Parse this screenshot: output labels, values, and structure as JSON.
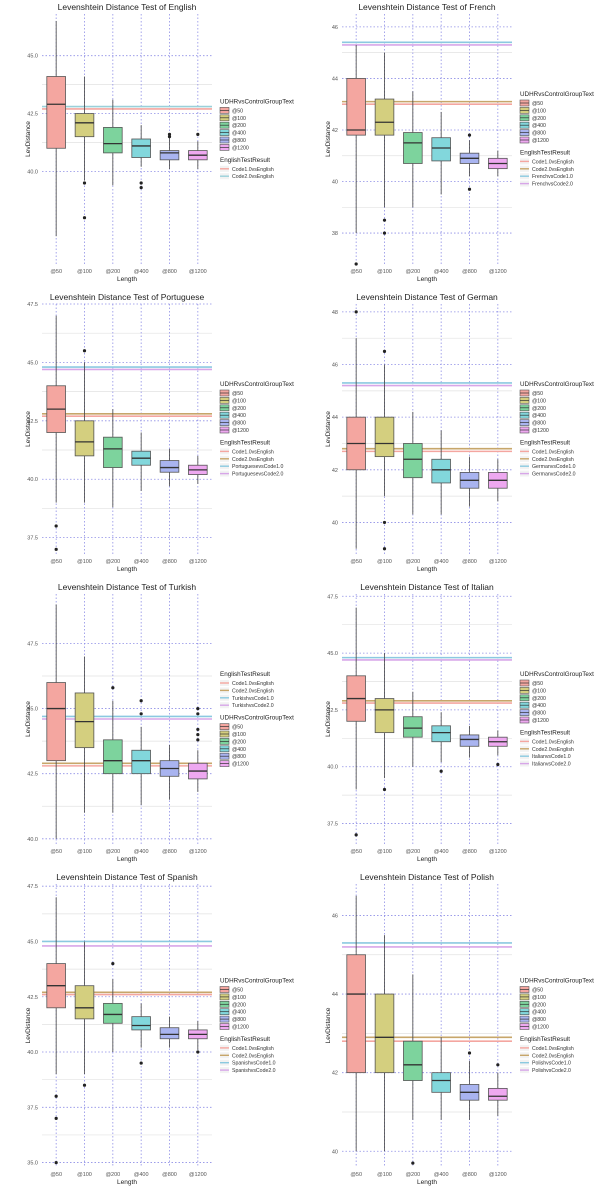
{
  "charts": [
    {
      "type": "boxplot",
      "title": "Levenshtein Distance Test of English",
      "xlabel": "Length",
      "ylabel": "LevDistance",
      "categories": [
        "@50",
        "@100",
        "@200",
        "@400",
        "@800",
        "@1200"
      ],
      "ylim": [
        36.0,
        46.8
      ],
      "yticks": [
        40.0,
        42.5,
        45.0
      ],
      "boxes": [
        {
          "q1": 41.0,
          "median": 42.9,
          "q3": 44.1,
          "lo": 37.2,
          "hi": 46.5,
          "out": []
        },
        {
          "q1": 41.5,
          "median": 42.1,
          "q3": 42.5,
          "lo": 39.6,
          "hi": 44.1,
          "out": [
            39.5,
            38.0
          ]
        },
        {
          "q1": 40.8,
          "median": 41.2,
          "q3": 41.9,
          "lo": 39.4,
          "hi": 43.1,
          "out": []
        },
        {
          "q1": 40.6,
          "median": 41.1,
          "q3": 41.4,
          "lo": 40.2,
          "hi": 42.0,
          "out": [
            39.5,
            39.3
          ]
        },
        {
          "q1": 40.5,
          "median": 40.8,
          "q3": 40.9,
          "lo": 40.1,
          "hi": 41.5,
          "out": [
            41.6,
            41.5
          ]
        },
        {
          "q1": 40.5,
          "median": 40.7,
          "q3": 40.9,
          "lo": 40.1,
          "hi": 41.3,
          "out": [
            41.6
          ]
        }
      ],
      "hlines": [
        {
          "name": "Code1.0vsEnglish",
          "value": 42.7,
          "color": "#f4a6a0"
        },
        {
          "name": "Code2.0vsEnglish",
          "value": 42.8,
          "color": "#9ad0d9"
        }
      ],
      "legend_group1_title": "UDHRvsControlGroupText",
      "legend_group2_title": "EnglishTestResult",
      "group_order": "boxes_first"
    },
    {
      "type": "boxplot",
      "title": "Levenshtein Distance Test of French",
      "xlabel": "Length",
      "ylabel": "LevDistance",
      "categories": [
        "@50",
        "@100",
        "@200",
        "@400",
        "@800",
        "@1200"
      ],
      "ylim": [
        36.8,
        46.5
      ],
      "yticks": [
        38,
        40,
        42,
        44,
        46
      ],
      "boxes": [
        {
          "q1": 41.8,
          "median": 42.0,
          "q3": 44.0,
          "lo": 38.0,
          "hi": 45.3,
          "out": [
            36.8
          ]
        },
        {
          "q1": 41.8,
          "median": 42.3,
          "q3": 43.2,
          "lo": 39.0,
          "hi": 45.0,
          "out": [
            38.5,
            38.0
          ]
        },
        {
          "q1": 40.7,
          "median": 41.5,
          "q3": 41.9,
          "lo": 39.0,
          "hi": 43.5,
          "out": []
        },
        {
          "q1": 40.8,
          "median": 41.3,
          "q3": 41.7,
          "lo": 39.5,
          "hi": 42.7,
          "out": []
        },
        {
          "q1": 40.7,
          "median": 40.9,
          "q3": 41.1,
          "lo": 40.2,
          "hi": 41.6,
          "out": [
            41.8,
            39.7
          ]
        },
        {
          "q1": 40.5,
          "median": 40.7,
          "q3": 40.9,
          "lo": 40.2,
          "hi": 41.2,
          "out": []
        }
      ],
      "hlines": [
        {
          "name": "Code1.0vsEnglish",
          "value": 43.0,
          "color": "#f4a6a0"
        },
        {
          "name": "Code2.0vsEnglish",
          "value": 43.1,
          "color": "#c7a66a"
        },
        {
          "name": "FrenchvsCode1.0",
          "value": 45.4,
          "color": "#8bc9e0"
        },
        {
          "name": "FrenchvsCode2.0",
          "value": 45.3,
          "color": "#d7a6e8"
        }
      ],
      "legend_group1_title": "UDHRvsControlGroupText",
      "legend_group2_title": "EnglishTestResult",
      "group_order": "boxes_first"
    },
    {
      "type": "boxplot",
      "title": "Levenshtein Distance Test of Portuguese",
      "xlabel": "Length",
      "ylabel": "LevDistance",
      "categories": [
        "@50",
        "@100",
        "@200",
        "@400",
        "@800",
        "@1200"
      ],
      "ylim": [
        36.8,
        47.5
      ],
      "yticks": [
        37.5,
        40.0,
        42.5,
        45.0,
        47.5
      ],
      "boxes": [
        {
          "q1": 42.0,
          "median": 43.0,
          "q3": 44.0,
          "lo": 39.0,
          "hi": 47.0,
          "out": [
            38.0,
            37.0
          ]
        },
        {
          "q1": 41.0,
          "median": 41.6,
          "q3": 42.5,
          "lo": 39.0,
          "hi": 45.0,
          "out": [
            45.5
          ]
        },
        {
          "q1": 40.5,
          "median": 41.3,
          "q3": 41.8,
          "lo": 38.8,
          "hi": 43.0,
          "out": []
        },
        {
          "q1": 40.6,
          "median": 40.9,
          "q3": 41.2,
          "lo": 39.5,
          "hi": 42.0,
          "out": []
        },
        {
          "q1": 40.3,
          "median": 40.5,
          "q3": 40.8,
          "lo": 39.7,
          "hi": 41.3,
          "out": []
        },
        {
          "q1": 40.2,
          "median": 40.4,
          "q3": 40.6,
          "lo": 39.8,
          "hi": 41.0,
          "out": []
        }
      ],
      "hlines": [
        {
          "name": "Code1.0vsEnglish",
          "value": 42.7,
          "color": "#f4a6a0"
        },
        {
          "name": "Code2.0vsEnglish",
          "value": 42.8,
          "color": "#c7a66a"
        },
        {
          "name": "PortuguesevsCode1.0",
          "value": 44.8,
          "color": "#8bc9e0"
        },
        {
          "name": "PortuguesevsCode2.0",
          "value": 44.7,
          "color": "#d7a6e8"
        }
      ],
      "legend_group1_title": "UDHRvsControlGroupText",
      "legend_group2_title": "EnglishTestResult",
      "group_order": "boxes_first"
    },
    {
      "type": "boxplot",
      "title": "Levenshtein Distance Test of German",
      "xlabel": "Length",
      "ylabel": "LevDistance",
      "categories": [
        "@50",
        "@100",
        "@200",
        "@400",
        "@800",
        "@1200"
      ],
      "ylim": [
        38.8,
        48.3
      ],
      "yticks": [
        40,
        42,
        44,
        46,
        48
      ],
      "boxes": [
        {
          "q1": 42.0,
          "median": 43.0,
          "q3": 44.0,
          "lo": 39.0,
          "hi": 47.0,
          "out": [
            48.0
          ]
        },
        {
          "q1": 42.5,
          "median": 43.0,
          "q3": 44.0,
          "lo": 41.0,
          "hi": 46.0,
          "out": [
            46.5,
            40.0,
            39.0
          ]
        },
        {
          "q1": 41.7,
          "median": 42.4,
          "q3": 43.0,
          "lo": 40.3,
          "hi": 44.2,
          "out": []
        },
        {
          "q1": 41.5,
          "median": 42.0,
          "q3": 42.4,
          "lo": 40.3,
          "hi": 43.5,
          "out": []
        },
        {
          "q1": 41.3,
          "median": 41.6,
          "q3": 41.9,
          "lo": 40.6,
          "hi": 42.5,
          "out": []
        },
        {
          "q1": 41.3,
          "median": 41.6,
          "q3": 41.9,
          "lo": 40.8,
          "hi": 42.4,
          "out": []
        }
      ],
      "hlines": [
        {
          "name": "Code1.0vsEnglish",
          "value": 42.7,
          "color": "#f4a6a0"
        },
        {
          "name": "Code2.0vsEnglish",
          "value": 42.8,
          "color": "#c7a66a"
        },
        {
          "name": "GermanvsCode1.0",
          "value": 45.3,
          "color": "#8bc9e0"
        },
        {
          "name": "GermanvsCode2.0",
          "value": 45.2,
          "color": "#d7a6e8"
        }
      ],
      "legend_group1_title": "UDHRvsControlGroupText",
      "legend_group2_title": "EnglishTestResult",
      "group_order": "boxes_first"
    },
    {
      "type": "boxplot",
      "title": "Levenshtein Distance Test of Turkish",
      "xlabel": "Length",
      "ylabel": "LevDistance",
      "categories": [
        "@50",
        "@100",
        "@200",
        "@400",
        "@800",
        "@1200"
      ],
      "ylim": [
        39.8,
        49.4
      ],
      "yticks": [
        40.0,
        42.5,
        45.0,
        47.5
      ],
      "boxes": [
        {
          "q1": 43.0,
          "median": 45.0,
          "q3": 46.0,
          "lo": 40.0,
          "hi": 49.0,
          "out": []
        },
        {
          "q1": 43.5,
          "median": 44.5,
          "q3": 45.6,
          "lo": 41.0,
          "hi": 47.0,
          "out": []
        },
        {
          "q1": 42.5,
          "median": 43.0,
          "q3": 43.8,
          "lo": 41.0,
          "hi": 45.3,
          "out": [
            45.8
          ]
        },
        {
          "q1": 42.5,
          "median": 43.0,
          "q3": 43.4,
          "lo": 41.3,
          "hi": 44.3,
          "out": [
            44.8,
            45.3
          ]
        },
        {
          "q1": 42.4,
          "median": 42.7,
          "q3": 43.0,
          "lo": 41.5,
          "hi": 43.6,
          "out": []
        },
        {
          "q1": 42.3,
          "median": 42.6,
          "q3": 42.9,
          "lo": 41.8,
          "hi": 43.4,
          "out": [
            43.8,
            44.0,
            44.2,
            44.8,
            45.0
          ]
        }
      ],
      "hlines": [
        {
          "name": "Code1.0vsEnglish",
          "value": 42.8,
          "color": "#f4a6a0"
        },
        {
          "name": "Code2.0vsEnglish",
          "value": 42.9,
          "color": "#c7a66a"
        },
        {
          "name": "TurkishvsCode1.0",
          "value": 44.7,
          "color": "#8bc9e0"
        },
        {
          "name": "TurkishvsCode2.0",
          "value": 44.6,
          "color": "#d7a6e8"
        }
      ],
      "legend_group1_title": "UDHRvsControlGroupText",
      "legend_group2_title": "EnglishTestResult",
      "group_order": "lines_first"
    },
    {
      "type": "boxplot",
      "title": "Levenshtein Distance Test of Italian",
      "xlabel": "Length",
      "ylabel": "LevDistance",
      "categories": [
        "@50",
        "@100",
        "@200",
        "@400",
        "@800",
        "@1200"
      ],
      "ylim": [
        36.6,
        47.6
      ],
      "yticks": [
        37.5,
        40.0,
        42.5,
        45.0,
        47.5
      ],
      "boxes": [
        {
          "q1": 42.0,
          "median": 43.0,
          "q3": 44.0,
          "lo": 39.0,
          "hi": 47.0,
          "out": [
            37.0
          ]
        },
        {
          "q1": 41.5,
          "median": 42.5,
          "q3": 43.0,
          "lo": 39.5,
          "hi": 45.0,
          "out": [
            39.0
          ]
        },
        {
          "q1": 41.3,
          "median": 41.7,
          "q3": 42.2,
          "lo": 40.0,
          "hi": 43.3,
          "out": []
        },
        {
          "q1": 41.1,
          "median": 41.5,
          "q3": 41.8,
          "lo": 40.2,
          "hi": 42.4,
          "out": [
            39.8
          ]
        },
        {
          "q1": 40.9,
          "median": 41.2,
          "q3": 41.4,
          "lo": 40.4,
          "hi": 41.8,
          "out": []
        },
        {
          "q1": 40.9,
          "median": 41.1,
          "q3": 41.3,
          "lo": 40.5,
          "hi": 41.6,
          "out": [
            40.1
          ]
        }
      ],
      "hlines": [
        {
          "name": "Code1.0vsEnglish",
          "value": 42.8,
          "color": "#f4a6a0"
        },
        {
          "name": "Code2.0vsEnglish",
          "value": 42.9,
          "color": "#c7a66a"
        },
        {
          "name": "ItalianvsCode1.0",
          "value": 44.8,
          "color": "#8bc9e0"
        },
        {
          "name": "ItalianvsCode2.0",
          "value": 44.7,
          "color": "#d7a6e8"
        }
      ],
      "legend_group1_title": "UDHRvsControlGroupText",
      "legend_group2_title": "EnglishTestResult",
      "group_order": "boxes_first"
    },
    {
      "type": "boxplot",
      "title": "Levenshtein Distance Test of Spanish",
      "xlabel": "Length",
      "ylabel": "LevDistance",
      "categories": [
        "@50",
        "@100",
        "@200",
        "@400",
        "@800",
        "@1200"
      ],
      "ylim": [
        34.8,
        47.6
      ],
      "yticks": [
        35.0,
        37.5,
        40.0,
        42.5,
        45.0,
        47.5
      ],
      "boxes": [
        {
          "q1": 42.0,
          "median": 43.0,
          "q3": 44.0,
          "lo": 39.0,
          "hi": 47.0,
          "out": [
            38.0,
            37.0,
            35.0
          ]
        },
        {
          "q1": 41.5,
          "median": 42.0,
          "q3": 43.0,
          "lo": 39.0,
          "hi": 45.0,
          "out": [
            38.5
          ]
        },
        {
          "q1": 41.3,
          "median": 41.7,
          "q3": 42.2,
          "lo": 40.0,
          "hi": 43.3,
          "out": [
            44.0
          ]
        },
        {
          "q1": 41.0,
          "median": 41.2,
          "q3": 41.6,
          "lo": 40.2,
          "hi": 42.2,
          "out": [
            39.5
          ]
        },
        {
          "q1": 40.6,
          "median": 40.8,
          "q3": 41.1,
          "lo": 40.2,
          "hi": 41.6,
          "out": []
        },
        {
          "q1": 40.6,
          "median": 40.8,
          "q3": 41.0,
          "lo": 40.1,
          "hi": 41.4,
          "out": [
            40.0
          ]
        }
      ],
      "hlines": [
        {
          "name": "Code1.0vsEnglish",
          "value": 42.6,
          "color": "#f4a6a0"
        },
        {
          "name": "Code2.0vsEnglish",
          "value": 42.7,
          "color": "#c7a66a"
        },
        {
          "name": "SpanishvsCode1.0",
          "value": 45.0,
          "color": "#8bc9e0"
        },
        {
          "name": "SpanishvsCode2.0",
          "value": 44.8,
          "color": "#d7a6e8"
        }
      ],
      "legend_group1_title": "UDHRvsControlGroupText",
      "legend_group2_title": "EnglishTestResult",
      "group_order": "boxes_first"
    },
    {
      "type": "boxplot",
      "title": "Levenshtein Distance Test of Polish",
      "xlabel": "Length",
      "ylabel": "LevDistance",
      "categories": [
        "@50",
        "@100",
        "@200",
        "@400",
        "@800",
        "@1200"
      ],
      "ylim": [
        39.6,
        46.8
      ],
      "yticks": [
        40,
        42,
        44,
        46
      ],
      "boxes": [
        {
          "q1": 42.0,
          "median": 44.0,
          "q3": 45.0,
          "lo": 40.0,
          "hi": 46.5,
          "out": []
        },
        {
          "q1": 42.0,
          "median": 42.9,
          "q3": 44.0,
          "lo": 40.0,
          "hi": 45.5,
          "out": []
        },
        {
          "q1": 41.8,
          "median": 42.2,
          "q3": 42.8,
          "lo": 40.8,
          "hi": 44.5,
          "out": [
            39.7
          ]
        },
        {
          "q1": 41.5,
          "median": 41.8,
          "q3": 42.0,
          "lo": 40.8,
          "hi": 42.9,
          "out": []
        },
        {
          "q1": 41.3,
          "median": 41.5,
          "q3": 41.7,
          "lo": 40.8,
          "hi": 42.3,
          "out": [
            42.5
          ]
        },
        {
          "q1": 41.3,
          "median": 41.4,
          "q3": 41.6,
          "lo": 40.9,
          "hi": 42.0,
          "out": [
            42.2
          ]
        }
      ],
      "hlines": [
        {
          "name": "Code1.0vsEnglish",
          "value": 42.8,
          "color": "#f4a6a0"
        },
        {
          "name": "Code2.0vsEnglish",
          "value": 42.9,
          "color": "#c7a66a"
        },
        {
          "name": "PolishvsCode1.0",
          "value": 45.3,
          "color": "#8bc9e0"
        },
        {
          "name": "PolishvsCode2.0",
          "value": 45.2,
          "color": "#d7a6e8"
        }
      ],
      "legend_group1_title": "UDHRvsControlGroupText",
      "legend_group2_title": "EnglishTestResult",
      "group_order": "boxes_first"
    }
  ],
  "box_colors": [
    "#f4a6a0",
    "#d4cf7f",
    "#7dd39d",
    "#82d7dc",
    "#a9b4f0",
    "#eea8f0"
  ],
  "gridline_color": "#8f8fe6"
}
